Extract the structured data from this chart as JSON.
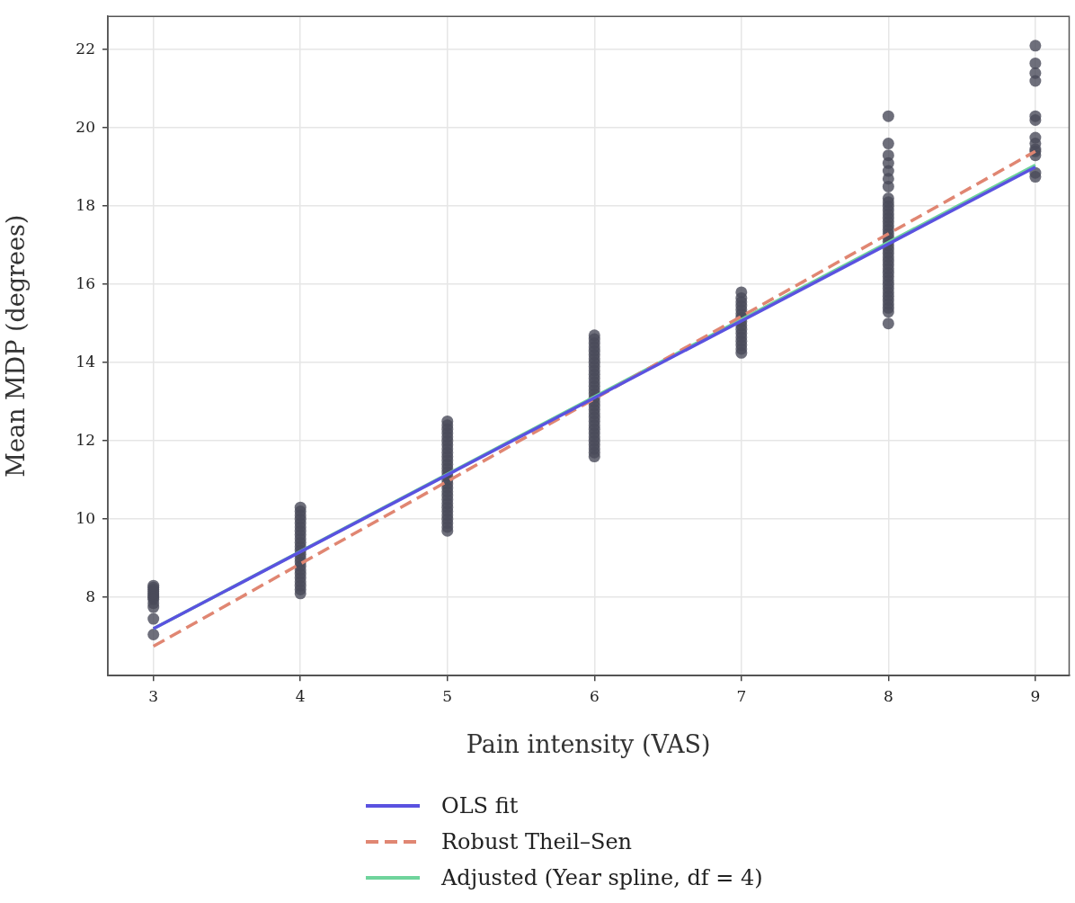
{
  "chart_data": {
    "type": "scatter",
    "xlabel": "Pain intensity (VAS)",
    "ylabel": "Mean MDP (degrees)",
    "xlim": [
      2.69,
      9.23
    ],
    "xticks": [
      3,
      4,
      5,
      6,
      7,
      8,
      9
    ],
    "ylim": [
      6.0,
      22.85
    ],
    "yticks": [
      8,
      10,
      12,
      14,
      16,
      18,
      20,
      22
    ],
    "grid": true,
    "legend": "bottom",
    "series": [
      {
        "type": "scatter",
        "marker": "circle",
        "color": "#4a4b5a",
        "x": [
          3,
          3,
          3,
          3,
          3,
          3,
          3,
          3,
          3,
          3,
          3,
          3,
          4,
          4,
          4,
          4,
          4,
          4,
          4,
          4,
          4,
          4,
          4,
          4,
          4,
          4,
          4,
          4,
          4,
          4,
          4,
          4,
          4,
          4,
          4,
          5,
          5,
          5,
          5,
          5,
          5,
          5,
          5,
          5,
          5,
          5,
          5,
          5,
          5,
          5,
          5,
          5,
          5,
          5,
          5,
          5,
          5,
          5,
          5,
          5,
          5,
          5,
          5,
          5,
          6,
          6,
          6,
          6,
          6,
          6,
          6,
          6,
          6,
          6,
          6,
          6,
          6,
          6,
          6,
          6,
          6,
          6,
          6,
          6,
          6,
          6,
          6,
          6,
          6,
          6,
          6,
          6,
          6,
          6,
          6,
          6,
          7,
          7,
          7,
          7,
          7,
          7,
          7,
          7,
          7,
          7,
          7,
          7,
          7,
          7,
          7,
          7,
          8,
          8,
          8,
          8,
          8,
          8,
          8,
          8,
          8,
          8,
          8,
          8,
          8,
          8,
          8,
          8,
          8,
          8,
          8,
          8,
          8,
          8,
          8,
          8,
          8,
          8,
          8,
          8,
          8,
          8,
          8,
          8,
          8,
          8,
          8,
          8,
          8,
          8,
          9,
          9,
          9,
          9,
          9,
          9,
          9,
          9,
          9,
          9,
          9,
          9,
          9
        ],
        "values": [
          7.05,
          7.45,
          7.75,
          7.85,
          7.95,
          8.0,
          8.05,
          8.1,
          8.15,
          8.2,
          8.25,
          8.3,
          8.1,
          8.2,
          8.3,
          8.4,
          8.5,
          8.6,
          8.7,
          8.8,
          8.9,
          9.0,
          9.1,
          9.2,
          9.3,
          9.4,
          9.5,
          9.6,
          9.7,
          9.8,
          9.9,
          10.0,
          10.1,
          10.2,
          10.3,
          9.7,
          9.8,
          9.9,
          10.0,
          10.1,
          10.2,
          10.3,
          10.4,
          10.5,
          10.6,
          10.7,
          10.8,
          10.9,
          11.0,
          11.1,
          11.2,
          11.3,
          11.4,
          11.5,
          11.6,
          11.7,
          11.8,
          11.9,
          12.0,
          12.1,
          12.2,
          12.3,
          12.4,
          12.5,
          11.6,
          11.7,
          11.8,
          11.9,
          12.0,
          12.1,
          12.2,
          12.3,
          12.4,
          12.5,
          12.6,
          12.7,
          12.8,
          12.9,
          13.0,
          13.1,
          13.2,
          13.3,
          13.4,
          13.5,
          13.6,
          13.7,
          13.8,
          13.9,
          14.0,
          14.1,
          14.2,
          14.3,
          14.4,
          14.5,
          14.6,
          14.7,
          14.25,
          14.35,
          14.45,
          14.55,
          14.65,
          14.75,
          14.85,
          14.95,
          15.05,
          15.15,
          15.25,
          15.35,
          15.45,
          15.55,
          15.65,
          15.8,
          15.0,
          15.3,
          15.4,
          15.5,
          15.6,
          15.7,
          15.8,
          15.9,
          16.0,
          16.1,
          16.2,
          16.3,
          16.4,
          16.5,
          16.6,
          16.7,
          16.8,
          16.9,
          17.0,
          17.1,
          17.2,
          17.3,
          17.4,
          17.5,
          17.6,
          17.7,
          17.8,
          17.9,
          18.0,
          18.1,
          18.2,
          18.5,
          18.7,
          18.9,
          19.1,
          19.3,
          19.6,
          20.3,
          18.75,
          18.85,
          19.3,
          19.4,
          19.6,
          19.75,
          20.2,
          20.3,
          21.2,
          21.4,
          21.65,
          22.1,
          19.45
        ]
      },
      {
        "type": "line",
        "name": "OLS fit",
        "color": "#5a52e0",
        "marker": "none",
        "line_style": "solid",
        "x": [
          3,
          9
        ],
        "values": [
          7.2,
          19.0
        ]
      },
      {
        "type": "line",
        "name": "Robust Theil–Sen",
        "color": "#e08672",
        "marker": "none",
        "line_style": "dashed",
        "x": [
          3,
          9
        ],
        "values": [
          6.75,
          19.4
        ]
      },
      {
        "type": "line",
        "name": "Adjusted (Year spline, df = 4)",
        "color": "#6fd49c",
        "marker": "none",
        "line_style": "solid",
        "x": [
          3,
          9
        ],
        "values": [
          7.2,
          19.05
        ]
      }
    ]
  }
}
